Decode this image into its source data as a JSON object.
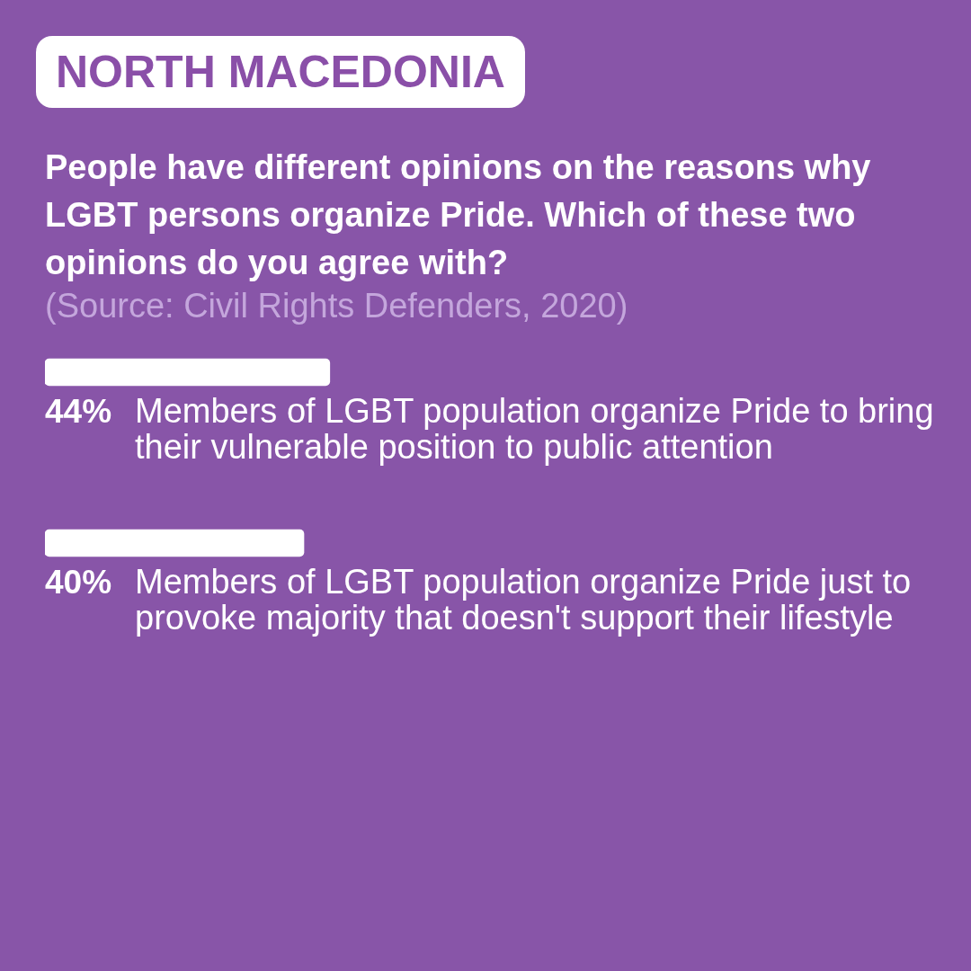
{
  "chart_data": {
    "type": "bar",
    "orientation": "horizontal",
    "title": "NORTH MACEDONIA",
    "subtitle": "People have different opinions on the reasons why LGBT persons organize Pride. Which of these two opinions do you agree with?",
    "annotations": [
      "(Source: Civil Rights Defenders, 2020)"
    ],
    "categories": [
      "Members of LGBT population organize Pride to bring their vulnerable position to public attention",
      "Members of LGBT population organize Pride just to provoke majority that doesn't support their lifestyle"
    ],
    "values": [
      44,
      40
    ],
    "value_labels": [
      "44%",
      "40%"
    ],
    "color": "#ffffff"
  }
}
